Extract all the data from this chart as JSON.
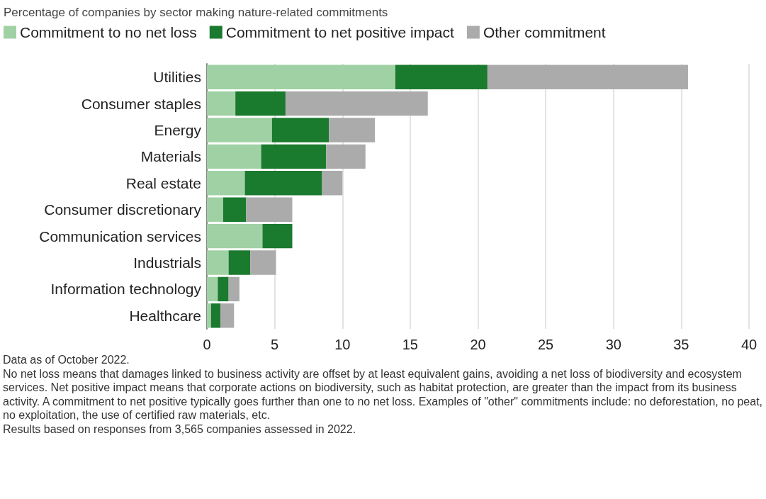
{
  "chart_data": {
    "type": "bar",
    "orientation": "horizontal",
    "stacked": true,
    "title": "Percentage of companies by sector making nature-related commitments",
    "categories": [
      "Utilities",
      "Consumer staples",
      "Energy",
      "Materials",
      "Real estate",
      "Consumer discretionary",
      "Communication services",
      "Industrials",
      "Information technology",
      "Healthcare"
    ],
    "series": [
      {
        "name": "Commitment to no net loss",
        "color": "#a0d1a4",
        "values": [
          13.9,
          2.1,
          4.8,
          4.0,
          2.8,
          1.2,
          4.1,
          1.6,
          0.8,
          0.3
        ]
      },
      {
        "name": "Commitment to net positive impact",
        "color": "#1a7a2e",
        "values": [
          6.8,
          3.7,
          4.2,
          4.8,
          5.7,
          1.7,
          2.2,
          1.6,
          0.8,
          0.7
        ]
      },
      {
        "name": "Other commitment",
        "color": "#ababab",
        "values": [
          14.8,
          10.5,
          3.4,
          2.9,
          1.5,
          3.4,
          0,
          1.9,
          0.8,
          1.0
        ]
      }
    ],
    "xlim": [
      0,
      40
    ],
    "xticks": [
      0,
      5,
      10,
      15,
      20,
      25,
      30,
      35,
      40
    ],
    "grid": "x",
    "legend": "top left",
    "annotations": [
      "Data as of October 2022.",
      "No net loss means that damages linked to business activity are offset by at least equivalent gains, avoiding a net loss of biodiversity and ecosystem services. Net positive impact means that corporate actions on biodiversity, such as habitat protection, are greater than the impact from its business activity. A commitment to net positive typically goes further than one to no net loss. Examples of \"other\" commitments include: no deforestation, no peat, no exploitation, the use of certified raw materials, etc.",
      "Results based on responses from 3,565 companies assessed in 2022."
    ]
  }
}
